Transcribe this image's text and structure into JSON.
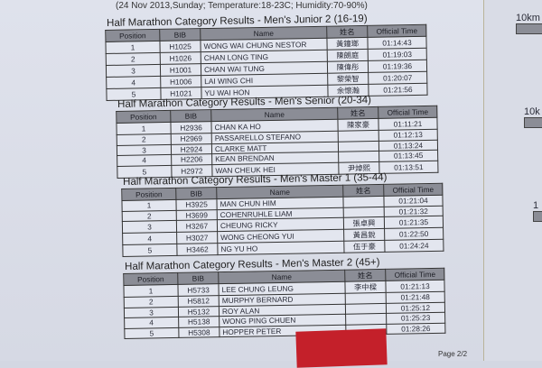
{
  "header": "(24 Nov 2013,Sunday; Temperature:18-23C; Humidity:70-90%)",
  "columns": [
    "Position",
    "BIB",
    "Name",
    "姓名",
    "Official Time"
  ],
  "sections": [
    {
      "title": "Half Marathon Category Results - Men's Junior 2 (16-19)",
      "rows": [
        [
          "1",
          "H1025",
          "WONG WAI CHUNG NESTOR",
          "黃鐘瑯",
          "01:14:43"
        ],
        [
          "2",
          "H1026",
          "CHAN LONG TING",
          "陳朗庭",
          "01:19:03"
        ],
        [
          "3",
          "H1001",
          "CHAN WAI TUNG",
          "陳偉彤",
          "01:19:36"
        ],
        [
          "4",
          "H1006",
          "LAI WING CHI",
          "黎榮智",
          "01:20:07"
        ],
        [
          "5",
          "H1021",
          "YU WAI HON",
          "余懷瀚",
          "01:21:56"
        ]
      ]
    },
    {
      "title": "Half Marathon Category Results - Men's Senior (20-34)",
      "rows": [
        [
          "1",
          "H2936",
          "CHAN KA HO",
          "陳家豪",
          "01:11:21"
        ],
        [
          "2",
          "H2969",
          "PASSARELLO STEFANO",
          "",
          "01:12:13"
        ],
        [
          "3",
          "H2924",
          "CLARKE MATT",
          "",
          "01:13:24"
        ],
        [
          "4",
          "H2206",
          "KEAN BRENDAN",
          "",
          "01:13:45"
        ],
        [
          "5",
          "H2972",
          "WAN CHEUK HEI",
          "尹焯熙",
          "01:13:51"
        ]
      ]
    },
    {
      "title": "Half Marathon Category Results - Men's Master 1 (35-44)",
      "rows": [
        [
          "1",
          "H3925",
          "MAN CHUN HIM",
          "",
          "01:21:04"
        ],
        [
          "2",
          "H3699",
          "COHENRUHLE LIAM",
          "",
          "01:21:32"
        ],
        [
          "3",
          "H3267",
          "CHEUNG RICKY",
          "張卓興",
          "01:21:35"
        ],
        [
          "4",
          "H3027",
          "WONG CHEONG YUI",
          "黃昌銳",
          "01:22:50"
        ],
        [
          "5",
          "H3462",
          "NG YU HO",
          "伍于豪",
          "01:24:24"
        ]
      ]
    },
    {
      "title": "Half Marathon Category Results - Men's Master 2 (45+)",
      "rows": [
        [
          "1",
          "H5733",
          "LEE CHUNG LEUNG",
          "李中樑",
          "01:21:13"
        ],
        [
          "2",
          "H5812",
          "MURPHY BERNARD",
          "",
          "01:21:48"
        ],
        [
          "3",
          "H5132",
          "ROY ALAN",
          "",
          "01:25:12"
        ],
        [
          "4",
          "H5138",
          "WONG PING CHUEN",
          "",
          "01:25:23"
        ],
        [
          "5",
          "H5308",
          "HOPPER PETER",
          "",
          "01:28:26"
        ]
      ]
    }
  ],
  "footer": "Page 2/2",
  "right_page": [
    "10km",
    "10k",
    "1"
  ]
}
